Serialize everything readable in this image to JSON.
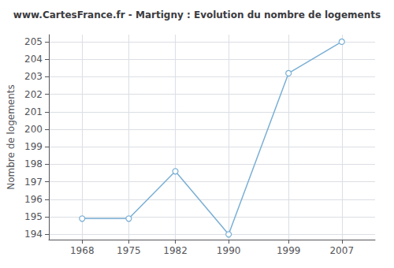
{
  "chart_data": {
    "type": "line",
    "title": "www.CartesFrance.fr - Martigny : Evolution du nombre de logements",
    "ylabel": "Nombre de logements",
    "x": [
      1968,
      1975,
      1982,
      1990,
      1999,
      2007
    ],
    "values": [
      194.9,
      194.9,
      197.6,
      194.0,
      203.2,
      205.0
    ],
    "color": "#7aafd4",
    "marker": "circle",
    "xlim": [
      1963,
      2012
    ],
    "xticks": [
      1968,
      1975,
      1982,
      1990,
      1999,
      2007
    ],
    "ylim": [
      193.7,
      205.4
    ],
    "yticks": [
      194,
      195,
      196,
      197,
      198,
      199,
      200,
      201,
      202,
      203,
      204,
      205
    ],
    "grid": true
  }
}
